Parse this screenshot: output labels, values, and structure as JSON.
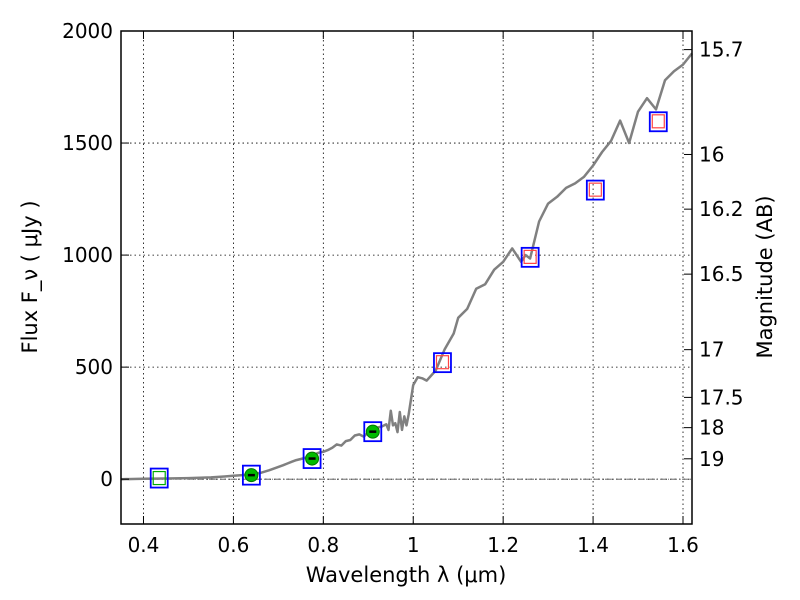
{
  "chart_data": {
    "type": "line",
    "title": "",
    "xlabel": "Wavelength  λ (μm)",
    "ylabel": "Flux  F_ν  ( μJy )",
    "y2label": "Magnitude (AB)",
    "xlim": [
      0.35,
      1.62
    ],
    "ylim": [
      -200,
      2000
    ],
    "grid": true,
    "x_ticks": [
      {
        "value": 0.4,
        "label": "0.4"
      },
      {
        "value": 0.6,
        "label": "0.6"
      },
      {
        "value": 0.8,
        "label": "0.8"
      },
      {
        "value": 1.0,
        "label": "1"
      },
      {
        "value": 1.2,
        "label": "1.2"
      },
      {
        "value": 1.4,
        "label": "1.4"
      },
      {
        "value": 1.6,
        "label": "1.6"
      }
    ],
    "y_ticks": [
      {
        "value": 0,
        "label": "0"
      },
      {
        "value": 500,
        "label": "500"
      },
      {
        "value": 1000,
        "label": "1000"
      },
      {
        "value": 1500,
        "label": "1500"
      },
      {
        "value": 2000,
        "label": "2000"
      }
    ],
    "mag_ticks": [
      {
        "value": 1917,
        "label": "15.7"
      },
      {
        "value": 1449,
        "label": "16"
      },
      {
        "value": 1205,
        "label": "16.2"
      },
      {
        "value": 915,
        "label": "16.5"
      },
      {
        "value": 578,
        "label": "17"
      },
      {
        "value": 365,
        "label": "17.5"
      },
      {
        "value": 230,
        "label": "18"
      },
      {
        "value": 91,
        "label": "19"
      }
    ],
    "colors": {
      "sed_line": "#808080",
      "model_marker": "#0000ff",
      "obs_marker_fill": "#00bb00",
      "obs_marker_edge": "#007700",
      "nir_marker": "#ff4444",
      "upper_limit": "#00aa00",
      "zero_line": "#555555",
      "grid": "#000000"
    },
    "sed_x": [
      0.35,
      0.4,
      0.45,
      0.5,
      0.55,
      0.58,
      0.6,
      0.62,
      0.64,
      0.66,
      0.68,
      0.7,
      0.71,
      0.72,
      0.73,
      0.74,
      0.75,
      0.76,
      0.77,
      0.78,
      0.79,
      0.8,
      0.81,
      0.82,
      0.83,
      0.84,
      0.85,
      0.86,
      0.87,
      0.88,
      0.89,
      0.9,
      0.91,
      0.92,
      0.93,
      0.94,
      0.945,
      0.95,
      0.955,
      0.96,
      0.965,
      0.97,
      0.975,
      0.98,
      0.985,
      0.99,
      1.0,
      1.01,
      1.02,
      1.03,
      1.05,
      1.07,
      1.09,
      1.1,
      1.12,
      1.14,
      1.16,
      1.18,
      1.2,
      1.22,
      1.24,
      1.25,
      1.26,
      1.28,
      1.3,
      1.32,
      1.34,
      1.36,
      1.38,
      1.4,
      1.42,
      1.44,
      1.46,
      1.48,
      1.5,
      1.52,
      1.54,
      1.56,
      1.58,
      1.6,
      1.62
    ],
    "sed_y": [
      0,
      2,
      3,
      5,
      8,
      12,
      15,
      18,
      22,
      28,
      40,
      55,
      62,
      70,
      78,
      85,
      90,
      95,
      100,
      110,
      118,
      122,
      130,
      140,
      155,
      150,
      170,
      175,
      195,
      200,
      190,
      210,
      205,
      230,
      235,
      245,
      220,
      305,
      240,
      250,
      210,
      300,
      220,
      280,
      240,
      290,
      420,
      455,
      450,
      440,
      485,
      580,
      650,
      720,
      760,
      850,
      870,
      935,
      970,
      1030,
      970,
      1000,
      985,
      1150,
      1230,
      1260,
      1300,
      1320,
      1350,
      1400,
      1460,
      1510,
      1600,
      1500,
      1640,
      1700,
      1650,
      1780,
      1820,
      1850,
      1900
    ],
    "model_points": [
      {
        "x": 0.435,
        "y": 5
      },
      {
        "x": 0.64,
        "y": 18
      },
      {
        "x": 0.775,
        "y": 92
      },
      {
        "x": 0.91,
        "y": 212
      },
      {
        "x": 1.065,
        "y": 520
      },
      {
        "x": 1.26,
        "y": 990
      },
      {
        "x": 1.405,
        "y": 1290
      },
      {
        "x": 1.545,
        "y": 1595
      }
    ],
    "observed_points": [
      {
        "x": 0.64,
        "y": 18,
        "yerr": 8
      },
      {
        "x": 0.775,
        "y": 92,
        "yerr": 10
      },
      {
        "x": 0.91,
        "y": 212,
        "yerr": 12
      }
    ],
    "nir_points": [
      {
        "x": 1.065,
        "y": 522
      },
      {
        "x": 1.26,
        "y": 992
      },
      {
        "x": 1.405,
        "y": 1292
      },
      {
        "x": 1.545,
        "y": 1597
      }
    ],
    "upper_limit_points": [
      {
        "x": 0.435,
        "y": 5
      }
    ]
  }
}
